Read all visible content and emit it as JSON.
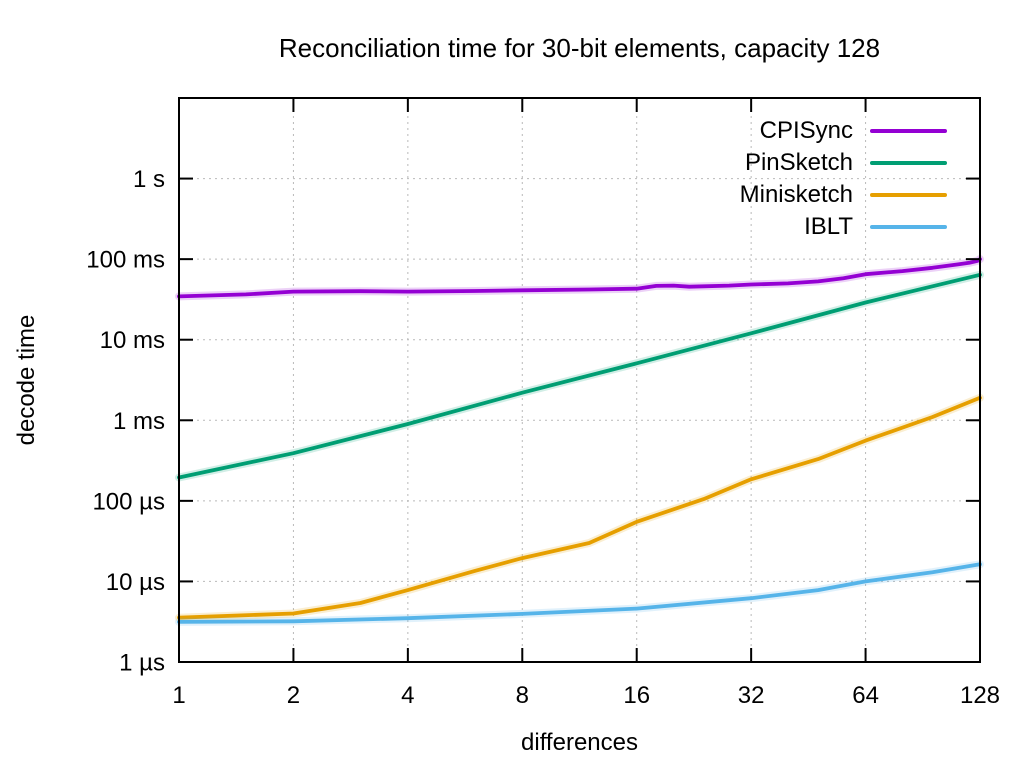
{
  "chart_data": {
    "type": "line",
    "title": "Reconciliation time for 30-bit elements, capacity 128",
    "xlabel": "differences",
    "ylabel": "decode time",
    "x_scale": "log2",
    "y_scale": "log10",
    "x_range": [
      1,
      128
    ],
    "y_range_us": [
      1,
      10000000
    ],
    "grid": true,
    "legend_position": "top-right",
    "x_ticks": [
      {
        "label": "1",
        "value": 1
      },
      {
        "label": "2",
        "value": 2
      },
      {
        "label": "4",
        "value": 4
      },
      {
        "label": "8",
        "value": 8
      },
      {
        "label": "16",
        "value": 16
      },
      {
        "label": "32",
        "value": 32
      },
      {
        "label": "64",
        "value": 64
      },
      {
        "label": "128",
        "value": 128
      }
    ],
    "y_ticks": [
      {
        "label": "1 µs",
        "value_us": 1
      },
      {
        "label": "10 µs",
        "value_us": 10
      },
      {
        "label": "100 µs",
        "value_us": 100
      },
      {
        "label": "1 ms",
        "value_us": 1000
      },
      {
        "label": "10 ms",
        "value_us": 10000
      },
      {
        "label": "100 ms",
        "value_us": 100000
      },
      {
        "label": "1 s",
        "value_us": 1000000
      }
    ],
    "series": [
      {
        "name": "CPISync",
        "color": "#9400d3",
        "points_us": [
          [
            1,
            34500
          ],
          [
            1.5,
            36500
          ],
          [
            2,
            39500
          ],
          [
            3,
            40000
          ],
          [
            4,
            39500
          ],
          [
            6,
            40200
          ],
          [
            8,
            41000
          ],
          [
            12,
            42000
          ],
          [
            16,
            43000
          ],
          [
            18,
            46500
          ],
          [
            20,
            47000
          ],
          [
            22,
            45500
          ],
          [
            24,
            46000
          ],
          [
            28,
            47000
          ],
          [
            32,
            48500
          ],
          [
            40,
            50000
          ],
          [
            48,
            53000
          ],
          [
            56,
            58000
          ],
          [
            64,
            65000
          ],
          [
            80,
            71000
          ],
          [
            96,
            78000
          ],
          [
            112,
            86000
          ],
          [
            120,
            90000
          ],
          [
            126,
            95000
          ],
          [
            128,
            100000
          ]
        ]
      },
      {
        "name": "PinSketch",
        "color": "#009e73",
        "points_us": [
          [
            1,
            195
          ],
          [
            2,
            390
          ],
          [
            4,
            900
          ],
          [
            8,
            2200
          ],
          [
            16,
            5100
          ],
          [
            32,
            12000
          ],
          [
            64,
            29000
          ],
          [
            128,
            64000
          ]
        ]
      },
      {
        "name": "Minisketch",
        "color": "#e69f00",
        "points_us": [
          [
            1,
            3.55
          ],
          [
            2,
            4.0
          ],
          [
            3,
            5.4
          ],
          [
            4,
            7.8
          ],
          [
            6,
            13.5
          ],
          [
            8,
            19.5
          ],
          [
            12,
            30
          ],
          [
            16,
            55
          ],
          [
            24,
            105
          ],
          [
            32,
            185
          ],
          [
            48,
            330
          ],
          [
            64,
            560
          ],
          [
            96,
            1100
          ],
          [
            128,
            1900
          ]
        ]
      },
      {
        "name": "IBLT",
        "color": "#56b4e9",
        "points_us": [
          [
            1,
            3.15
          ],
          [
            2,
            3.2
          ],
          [
            4,
            3.5
          ],
          [
            8,
            3.95
          ],
          [
            16,
            4.6
          ],
          [
            32,
            6.2
          ],
          [
            48,
            7.8
          ],
          [
            64,
            10
          ],
          [
            96,
            13
          ],
          [
            128,
            16.3
          ]
        ]
      }
    ]
  }
}
